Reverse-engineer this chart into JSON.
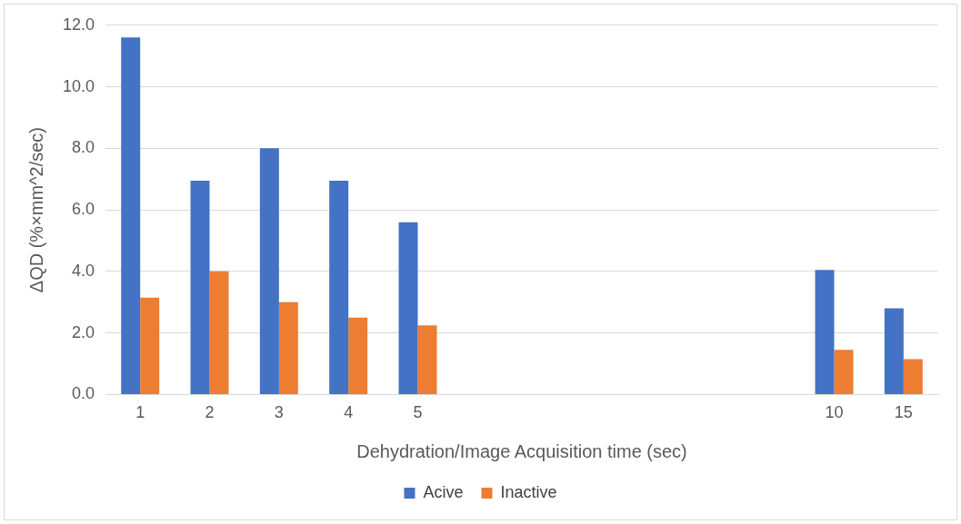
{
  "chart_data": {
    "type": "bar",
    "xlabel": "Dehydration/Image Acquisition time (sec)",
    "ylabel": "ΔQD (%×mm^2/sec)",
    "categories": [
      "1",
      "2",
      "3",
      "4",
      "5",
      null,
      null,
      null,
      null,
      null,
      "10",
      "15"
    ],
    "series": [
      {
        "name": "Acive",
        "color": "#4472c4",
        "values": [
          11.6,
          6.95,
          8.0,
          6.95,
          5.6,
          null,
          null,
          null,
          null,
          null,
          4.05,
          2.8
        ]
      },
      {
        "name": "Inactive",
        "color": "#ed7d31",
        "values": [
          3.15,
          4.0,
          3.0,
          2.5,
          2.25,
          null,
          null,
          null,
          null,
          null,
          1.45,
          1.15
        ]
      }
    ],
    "ylim": [
      0,
      12
    ],
    "yticks": [
      {
        "value": 0,
        "label": "0.0"
      },
      {
        "value": 2,
        "label": "2.0"
      },
      {
        "value": 4,
        "label": "4.0"
      },
      {
        "value": 6,
        "label": "6.0"
      },
      {
        "value": 8,
        "label": "8.0"
      },
      {
        "value": 10,
        "label": "10.0"
      },
      {
        "value": 12,
        "label": "12.0"
      }
    ],
    "grid": "y",
    "legend": "bottom"
  }
}
